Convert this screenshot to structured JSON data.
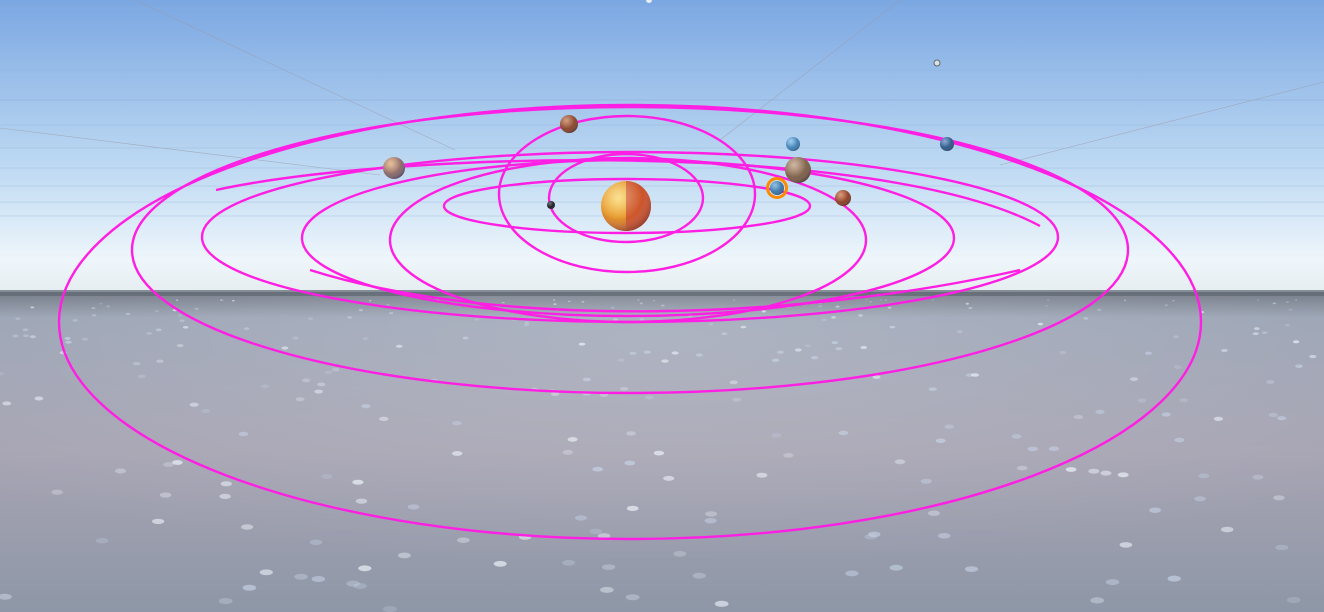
{
  "scene": {
    "type": "3d-viewport",
    "content": "solar-system-simulation",
    "sky_color_top": "#7ba7e2",
    "sky_color_horizon": "#eef6fb",
    "ground_color": "#9a9eae",
    "orbit_color": "#ff1ee3",
    "selection_outline_color": "#ff8a00"
  },
  "bodies": [
    {
      "name": "sun",
      "icon": "sun-sphere",
      "colors": [
        "#f2b233",
        "#c8462b"
      ]
    },
    {
      "name": "planet-1",
      "icon": "planet-sphere",
      "colors": [
        "#2c2c36",
        "#16161d"
      ]
    },
    {
      "name": "planet-2",
      "icon": "planet-sphere",
      "colors": [
        "#b86a43",
        "#6b3222"
      ]
    },
    {
      "name": "planet-3",
      "icon": "planet-sphere",
      "colors": [
        "#d9a06a",
        "#5b4b6e"
      ]
    },
    {
      "name": "planet-4",
      "icon": "planet-sphere",
      "colors": [
        "#5a9fd4",
        "#2d5f8e"
      ],
      "selected": true
    },
    {
      "name": "planet-5",
      "icon": "planet-sphere",
      "colors": [
        "#c4663d",
        "#6d2d1f"
      ]
    },
    {
      "name": "planet-6",
      "icon": "planet-sphere",
      "colors": [
        "#b49072",
        "#5e4636"
      ]
    },
    {
      "name": "planet-7",
      "icon": "planet-sphere",
      "colors": [
        "#6fb2e6",
        "#2b6596"
      ]
    },
    {
      "name": "planet-8",
      "icon": "planet-sphere",
      "colors": [
        "#4a7bb6",
        "#22466e"
      ]
    }
  ]
}
